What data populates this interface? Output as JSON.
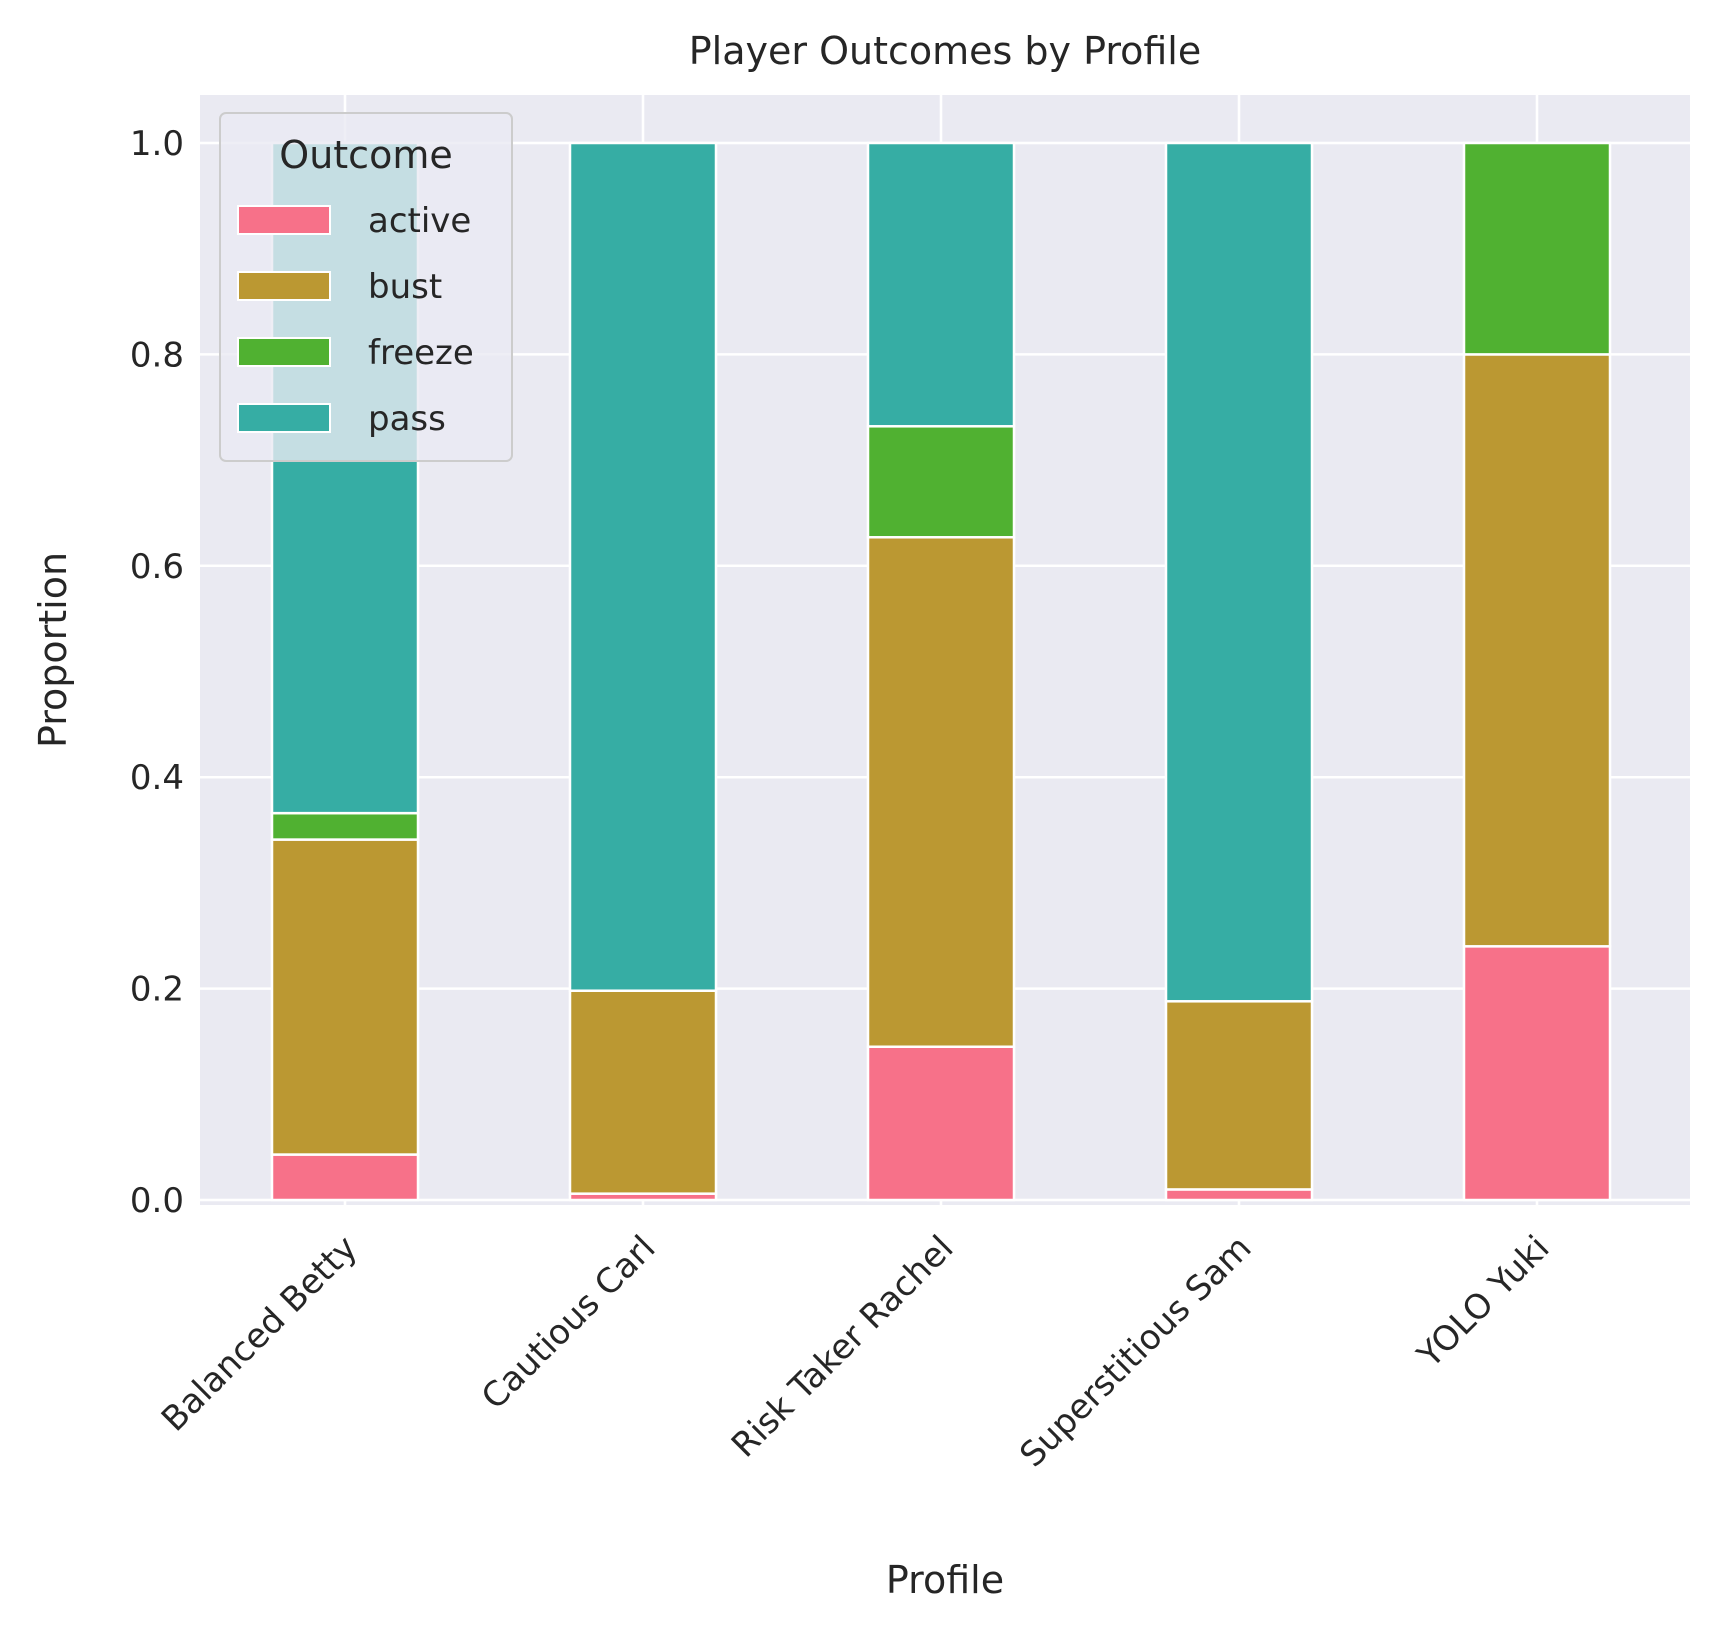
{
  "chart_data": {
    "type": "bar",
    "stacked": true,
    "title": "Player Outcomes by Profile",
    "xlabel": "Profile",
    "ylabel": "Proportion",
    "ylim": [
      0,
      1.05
    ],
    "yticks": [
      "0.0",
      "0.2",
      "0.4",
      "0.6",
      "0.8",
      "1.0"
    ],
    "categories": [
      "Balanced Betty",
      "Cautious Carl",
      "Risk Taker Rachel",
      "Superstitious Sam",
      "YOLO Yuki"
    ],
    "legend": {
      "title": "Outcome",
      "placement": "upper-left"
    },
    "grid": true,
    "series": [
      {
        "name": "active",
        "color": "#f77189",
        "values": [
          0.043,
          0.006,
          0.145,
          0.01,
          0.24
        ]
      },
      {
        "name": "bust",
        "color": "#bb9832",
        "values": [
          0.298,
          0.192,
          0.482,
          0.178,
          0.56
        ]
      },
      {
        "name": "freeze",
        "color": "#50b131",
        "values": [
          0.025,
          0.0,
          0.105,
          0.0,
          0.2
        ]
      },
      {
        "name": "pass",
        "color": "#36ada4",
        "values": [
          0.634,
          0.802,
          0.268,
          0.812,
          0.0
        ]
      }
    ]
  }
}
